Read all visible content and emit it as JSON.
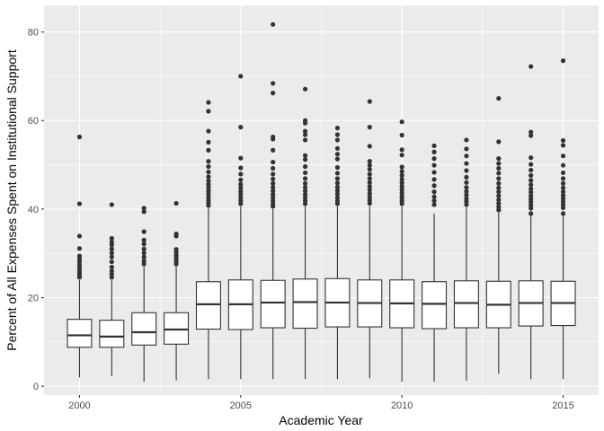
{
  "chart_data": {
    "type": "boxplot",
    "xlabel": "Academic Year",
    "ylabel": "Percent of All Expenses Spent on Institutional Support",
    "xlim": [
      1998.9,
      2016.1
    ],
    "ylim": [
      -2,
      86
    ],
    "x_ticks": [
      2000,
      2005,
      2010,
      2015
    ],
    "y_ticks": [
      0,
      20,
      40,
      60,
      80
    ],
    "grid": true,
    "colors": {
      "panel": "#ebebeb",
      "grid": "#ffffff",
      "box_fill": "#ffffff",
      "ink": "#333333"
    },
    "boxes": [
      {
        "year": 2000,
        "whisker_low": 2.0,
        "q1": 8.8,
        "median": 11.5,
        "q3": 15.1,
        "whisker_high": 24.0,
        "outliers": [
          24.6,
          25.0,
          25.5,
          26.1,
          26.8,
          27.4,
          28.1,
          28.7,
          29.4,
          31.1,
          33.9,
          41.2,
          56.3
        ]
      },
      {
        "year": 2001,
        "whisker_low": 2.3,
        "q1": 8.8,
        "median": 11.2,
        "q3": 14.9,
        "whisker_high": 24.0,
        "outliers": [
          24.6,
          25.3,
          26.0,
          26.9,
          28.1,
          29.2,
          30.1,
          31.0,
          31.9,
          32.6,
          33.4,
          41.0
        ]
      },
      {
        "year": 2002,
        "whisker_low": 1.0,
        "q1": 9.3,
        "median": 12.2,
        "q3": 16.6,
        "whisker_high": 27.0,
        "outliers": [
          27.6,
          28.3,
          29.2,
          30.1,
          31.0,
          32.1,
          33.0,
          34.9,
          39.4,
          40.2
        ]
      },
      {
        "year": 2003,
        "whisker_low": 1.3,
        "q1": 9.5,
        "median": 12.8,
        "q3": 16.6,
        "whisker_high": 27.0,
        "outliers": [
          27.6,
          28.2,
          28.9,
          29.5,
          30.2,
          30.9,
          33.9,
          34.4,
          41.3
        ]
      },
      {
        "year": 2004,
        "whisker_low": 1.6,
        "q1": 12.9,
        "median": 18.5,
        "q3": 23.6,
        "whisker_high": 40.2,
        "outliers": [
          40.8,
          41.4,
          42.0,
          42.7,
          43.4,
          44.1,
          44.9,
          45.6,
          46.4,
          47.3,
          48.4,
          49.6,
          50.8,
          53.3,
          55.1,
          57.6,
          62.1,
          64.1
        ]
      },
      {
        "year": 2005,
        "whisker_low": 1.6,
        "q1": 12.8,
        "median": 18.5,
        "q3": 24.0,
        "whisker_high": 40.6,
        "outliers": [
          41.2,
          41.9,
          42.6,
          43.3,
          44.0,
          44.8,
          45.6,
          46.6,
          47.9,
          49.3,
          51.5,
          58.5,
          70.0
        ]
      },
      {
        "year": 2006,
        "whisker_low": 1.6,
        "q1": 13.2,
        "median": 18.9,
        "q3": 23.9,
        "whisker_high": 40.0,
        "outliers": [
          40.6,
          41.2,
          41.9,
          42.6,
          43.3,
          44.1,
          44.9,
          45.8,
          46.8,
          47.9,
          49.2,
          50.6,
          53.3,
          55.8,
          56.3,
          66.2,
          68.4,
          81.7
        ]
      },
      {
        "year": 2007,
        "whisker_low": 1.6,
        "q1": 13.1,
        "median": 19.0,
        "q3": 24.2,
        "whisker_high": 40.6,
        "outliers": [
          41.2,
          41.9,
          42.6,
          43.3,
          44.1,
          44.9,
          45.8,
          46.9,
          48.2,
          49.6,
          51.2,
          52.1,
          55.6,
          56.8,
          57.6,
          59.4,
          60.0,
          67.1
        ]
      },
      {
        "year": 2008,
        "whisker_low": 1.6,
        "q1": 13.4,
        "median": 18.9,
        "q3": 24.3,
        "whisker_high": 40.6,
        "outliers": [
          41.2,
          41.9,
          42.6,
          43.4,
          44.2,
          45.0,
          45.9,
          46.9,
          48.1,
          49.4,
          51.3,
          52.4,
          53.7,
          55.6,
          56.8,
          58.3
        ]
      },
      {
        "year": 2009,
        "whisker_low": 1.8,
        "q1": 13.4,
        "median": 18.8,
        "q3": 24.0,
        "whisker_high": 40.7,
        "outliers": [
          41.3,
          42.0,
          42.7,
          43.5,
          44.3,
          45.1,
          46.0,
          46.9,
          47.9,
          49.0,
          49.9,
          50.8,
          54.2,
          58.5,
          64.3
        ]
      },
      {
        "year": 2010,
        "whisker_low": 1.0,
        "q1": 13.2,
        "median": 18.7,
        "q3": 24.0,
        "whisker_high": 40.6,
        "outliers": [
          41.2,
          41.8,
          42.4,
          43.0,
          43.7,
          44.4,
          45.1,
          45.9,
          46.7,
          47.6,
          48.5,
          49.5,
          52.2,
          53.4,
          56.7,
          59.7
        ]
      },
      {
        "year": 2011,
        "whisker_low": 1.0,
        "q1": 13.0,
        "median": 18.6,
        "q3": 23.6,
        "whisker_high": 39.0,
        "outliers": [
          41.0,
          41.9,
          42.8,
          43.9,
          45.3,
          46.7,
          48.3,
          49.9,
          51.4,
          52.9,
          54.3
        ]
      },
      {
        "year": 2012,
        "whisker_low": 1.2,
        "q1": 13.2,
        "median": 18.8,
        "q3": 23.8,
        "whisker_high": 40.4,
        "outliers": [
          41.0,
          41.7,
          42.4,
          43.2,
          44.0,
          44.9,
          46.0,
          47.2,
          48.7,
          50.3,
          52.0,
          53.6,
          55.6
        ]
      },
      {
        "year": 2013,
        "whisker_low": 2.8,
        "q1": 13.2,
        "median": 18.4,
        "q3": 23.7,
        "whisker_high": 39.2,
        "outliers": [
          39.8,
          40.5,
          41.3,
          42.1,
          43.0,
          43.9,
          44.8,
          45.8,
          46.9,
          48.1,
          49.2,
          50.3,
          51.4,
          55.2,
          65.0
        ]
      },
      {
        "year": 2014,
        "whisker_low": 1.6,
        "q1": 13.6,
        "median": 18.8,
        "q3": 23.8,
        "whisker_high": 39.6,
        "outliers": [
          39.0,
          40.2,
          40.9,
          41.6,
          42.3,
          43.0,
          43.8,
          44.6,
          45.5,
          46.5,
          47.6,
          48.8,
          50.1,
          51.6,
          56.6,
          57.4,
          72.2
        ]
      },
      {
        "year": 2015,
        "whisker_low": 1.6,
        "q1": 13.7,
        "median": 18.8,
        "q3": 23.7,
        "whisker_high": 39.6,
        "outliers": [
          39.0,
          40.3,
          41.0,
          41.7,
          42.4,
          43.1,
          43.9,
          44.8,
          45.8,
          46.9,
          48.2,
          49.9,
          52.0,
          54.4,
          55.5,
          73.5
        ]
      }
    ]
  }
}
